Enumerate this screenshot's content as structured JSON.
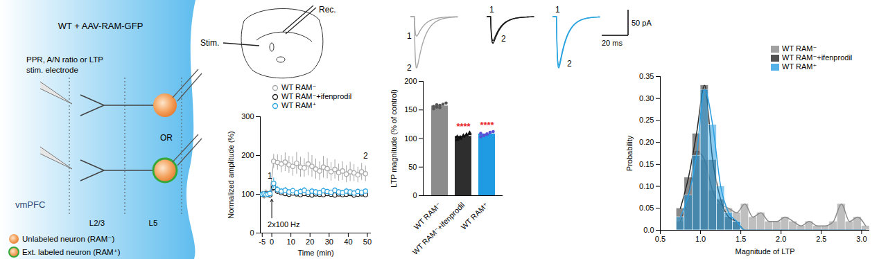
{
  "schematic": {
    "title": "WT + AAV-RAM-GFP",
    "electrode_label": [
      "PPR, A/N ratio or LTP",
      "stim. electrode"
    ],
    "or_label": "OR",
    "region": "vmPFC",
    "layers": [
      "L2/3",
      "L5"
    ],
    "legend": [
      {
        "label": "Unlabeled neuron (RAM⁻)",
        "color": "#f4a15c"
      },
      {
        "label": "Ext. labeled neuron (RAM⁺)",
        "color": "#f4a15c",
        "outline": "#35a83a"
      }
    ]
  },
  "recording": {
    "stim_label": "Stim.",
    "rec_label": "Rec.",
    "traces": [
      {
        "name": "WT RAM⁻",
        "color": "#a6a6a6",
        "peaks": [
          {
            "label": "1",
            "value": 38
          },
          {
            "label": "2",
            "value": 100
          }
        ]
      },
      {
        "name": "WT RAM⁻+ifenprodil",
        "color": "#1a1a1a",
        "peaks": [
          {
            "label": "1",
            "value": 47
          },
          {
            "label": "2",
            "value": 52
          }
        ]
      },
      {
        "name": "WT RAM⁺",
        "color": "#29a3e0",
        "peaks": [
          {
            "label": "1",
            "value": 95
          },
          {
            "label": "2",
            "value": 100
          }
        ]
      }
    ],
    "scale_bar": {
      "amplitude": 50,
      "amplitude_label": "50 pA",
      "time": 20,
      "time_label": "20 ms"
    }
  },
  "chart_data": [
    {
      "type": "line",
      "xlabel": "Time (min)",
      "ylabel": "Normalized amplitude (%)",
      "x": [
        -5,
        -4,
        -3,
        -2,
        -1,
        1,
        3,
        5,
        7,
        9,
        11,
        13,
        15,
        17,
        19,
        21,
        23,
        25,
        27,
        29,
        31,
        33,
        35,
        37,
        39,
        41,
        43,
        45,
        47,
        49
      ],
      "xlim": [
        -6,
        52
      ],
      "xticks": [
        -5,
        0,
        10,
        20,
        30,
        40,
        50
      ],
      "ylim": [
        0,
        300
      ],
      "yticks": [
        0,
        100,
        200,
        300
      ],
      "marker": "circle",
      "legend": "top-left",
      "series": [
        {
          "name": "WT RAM⁻",
          "color": "#a6a6a6",
          "values": [
            100,
            97,
            103,
            99,
            101,
            185,
            182,
            178,
            183,
            176,
            172,
            180,
            170,
            168,
            178,
            172,
            165,
            160,
            170,
            166,
            158,
            164,
            156,
            160,
            152,
            158,
            155,
            150,
            158,
            153
          ],
          "errors": [
            8,
            10,
            9,
            8,
            9,
            18,
            20,
            22,
            24,
            22,
            25,
            28,
            26,
            24,
            30,
            28,
            26,
            24,
            28,
            26,
            24,
            25,
            22,
            24,
            22,
            25,
            22,
            20,
            22,
            20
          ]
        },
        {
          "name": "WT RAM⁻+ifenprodil",
          "color": "#1a1a1a",
          "values": [
            100,
            99,
            101,
            100,
            98,
            118,
            108,
            104,
            102,
            100,
            103,
            101,
            99,
            102,
            100,
            98,
            101,
            100,
            99,
            102,
            100,
            98,
            101,
            99,
            100,
            102,
            98,
            100,
            101,
            99
          ],
          "errors": [
            5,
            5,
            5,
            5,
            5,
            10,
            8,
            6,
            6,
            5,
            6,
            5,
            5,
            6,
            5,
            5,
            6,
            5,
            5,
            6,
            5,
            5,
            6,
            5,
            5,
            6,
            5,
            5,
            6,
            5
          ]
        },
        {
          "name": "WT RAM⁺",
          "color": "#29a3e0",
          "values": [
            100,
            101,
            99,
            100,
            102,
            128,
            112,
            108,
            110,
            106,
            109,
            104,
            107,
            110,
            105,
            108,
            106,
            104,
            109,
            107,
            105,
            110,
            106,
            104,
            108,
            106,
            103,
            107,
            105,
            108
          ],
          "errors": [
            6,
            6,
            6,
            6,
            6,
            14,
            8,
            7,
            8,
            6,
            7,
            6,
            7,
            8,
            6,
            7,
            6,
            6,
            7,
            6,
            6,
            7,
            6,
            6,
            7,
            6,
            6,
            7,
            6,
            6
          ]
        }
      ],
      "annotations": [
        {
          "text": "2x100 Hz",
          "x": 0
        },
        {
          "text": "1",
          "x": -1
        },
        {
          "text": "2",
          "x": 49
        }
      ]
    },
    {
      "type": "bar",
      "ylabel": "LTP magnitude (% of control)",
      "categories": [
        "WT RAM⁻",
        "WT RAM⁻+ifenprodil",
        "WT RAM⁺"
      ],
      "values": [
        157,
        104,
        108
      ],
      "errors": [
        2,
        2,
        2
      ],
      "points": [
        [
          152,
          155,
          158,
          160,
          162,
          156,
          159,
          154
        ],
        [
          98,
          102,
          104,
          106,
          108,
          103,
          100,
          105,
          107,
          110
        ],
        [
          103,
          106,
          108,
          110,
          112,
          109,
          105,
          107,
          111
        ]
      ],
      "colors": [
        "#8c8c8c",
        "#2e2e2e",
        "#1e9be3"
      ],
      "significance": [
        null,
        "****",
        "****"
      ],
      "ylim": [
        0,
        200
      ],
      "yticks": [
        0,
        50,
        100,
        150,
        200
      ]
    },
    {
      "type": "histogram",
      "xlabel": "Magnitude of LTP",
      "ylabel": "Probability",
      "bins": [
        0.7,
        0.8,
        0.9,
        1.0,
        1.1,
        1.2,
        1.3,
        1.4,
        1.5,
        1.6,
        1.7,
        1.8,
        1.9,
        2.0,
        2.1,
        2.2,
        2.3,
        2.4,
        2.5,
        2.6,
        2.7,
        2.8,
        2.9,
        3.0,
        3.1
      ],
      "series": [
        {
          "name": "WT RAM⁻",
          "color": "#8a8a8a",
          "values": [
            0.02,
            0.08,
            0.18,
            0.16,
            0.09,
            0.06,
            0.05,
            0.04,
            0.06,
            0.03,
            0.04,
            0.02,
            0.02,
            0.03,
            0.02,
            0.01,
            0.02,
            0.01,
            0.01,
            0.02,
            0.06,
            0.02,
            0.03,
            0.01
          ]
        },
        {
          "name": "WT RAM⁻+ifenprodil",
          "color": "#262626",
          "values": [
            0.05,
            0.12,
            0.22,
            0.33,
            0.16,
            0.07,
            0.03,
            0.02,
            0,
            0,
            0,
            0,
            0,
            0,
            0,
            0,
            0,
            0,
            0,
            0,
            0,
            0,
            0,
            0
          ]
        },
        {
          "name": "WT RAM⁺",
          "color": "#2a9fe2",
          "values": [
            0.03,
            0.08,
            0.17,
            0.32,
            0.24,
            0.1,
            0.04,
            0.02,
            0,
            0,
            0,
            0,
            0,
            0,
            0,
            0,
            0,
            0,
            0,
            0,
            0,
            0,
            0,
            0
          ]
        }
      ],
      "xlim": [
        0.5,
        3.1
      ],
      "xticks": [
        0.5,
        {
          "value": 1,
          "label": "1.0"
        },
        1.5,
        {
          "value": 2,
          "label": "2.0"
        },
        2.5,
        {
          "value": 3,
          "label": "3.0"
        }
      ],
      "ylim": [
        0,
        0.35
      ],
      "yticks": [
        {
          "value": 0,
          "label": "0.0"
        },
        0.05,
        {
          "value": 0.1,
          "label": "0.10"
        },
        0.15,
        {
          "value": 0.2,
          "label": "0.20"
        },
        0.25,
        {
          "value": 0.3,
          "label": "0.30"
        },
        0.35
      ],
      "legend": "top-right"
    }
  ]
}
